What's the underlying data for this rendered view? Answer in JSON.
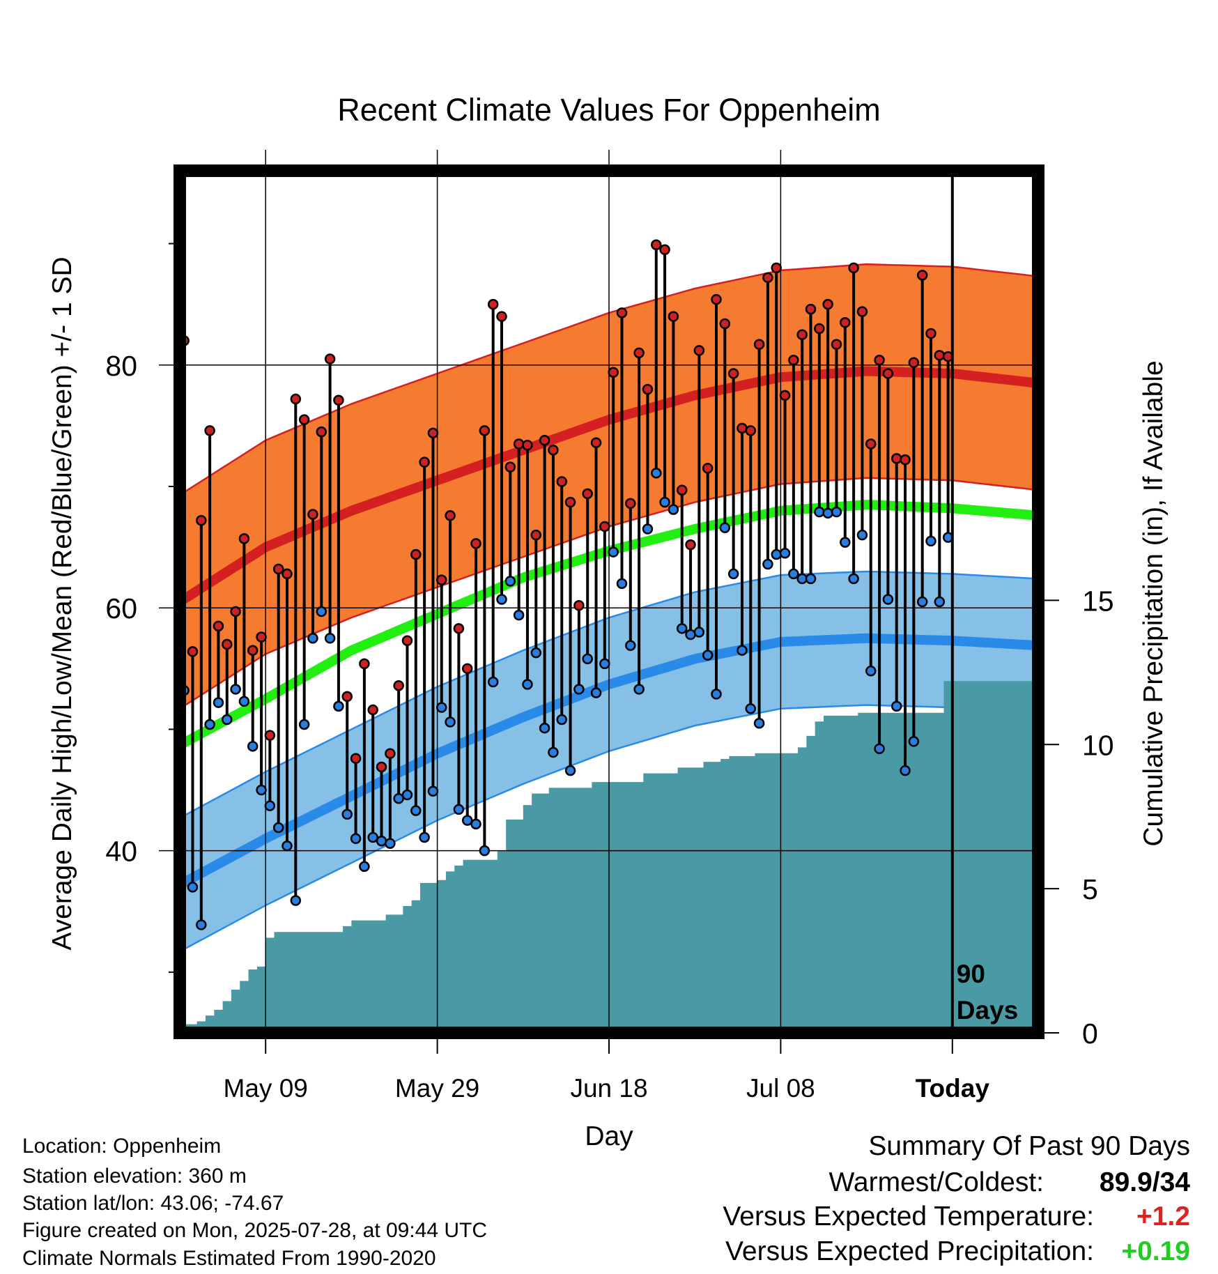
{
  "chart_data": {
    "type": "line",
    "title": "Recent Climate Values For Oppenheim",
    "xlabel": "Day",
    "ylabel": "Average Daily High/Low/Mean (Red/Blue/Green) +/- 1 SD",
    "ylabel_right": "Cumulative Precipitation (in), If Available",
    "x_ticks": [
      "May 09",
      "May 29",
      "Jun 18",
      "Jul 08",
      "Today"
    ],
    "x_tick_days": [
      10,
      30,
      50,
      70,
      90
    ],
    "xlim": [
      0,
      100
    ],
    "ylim": [
      25,
      96
    ],
    "y_ticks": [
      40,
      60,
      80
    ],
    "y_minor_ticks": [
      30,
      50,
      70,
      90
    ],
    "precip_ylim": [
      0,
      29.9
    ],
    "precip_ticks": [
      0,
      5,
      10,
      15
    ],
    "today_label": "90\nDays",
    "grid": true,
    "normals": {
      "high_mean": [
        [
          0,
          60.5
        ],
        [
          10,
          65.0
        ],
        [
          20,
          68.0
        ],
        [
          30,
          70.5
        ],
        [
          40,
          73.0
        ],
        [
          50,
          75.5
        ],
        [
          60,
          77.5
        ],
        [
          70,
          79.0
        ],
        [
          80,
          79.5
        ],
        [
          90,
          79.3
        ],
        [
          100,
          78.5
        ]
      ],
      "high_sd": 8.8,
      "mean": [
        [
          0,
          48.7
        ],
        [
          10,
          52.5
        ],
        [
          20,
          56.5
        ],
        [
          30,
          59.5
        ],
        [
          40,
          62.5
        ],
        [
          50,
          64.7
        ],
        [
          60,
          66.5
        ],
        [
          70,
          68.0
        ],
        [
          80,
          68.5
        ],
        [
          90,
          68.2
        ],
        [
          100,
          67.6
        ]
      ],
      "low_mean": [
        [
          0,
          37.2
        ],
        [
          10,
          41.0
        ],
        [
          20,
          44.5
        ],
        [
          30,
          48.0
        ],
        [
          40,
          51.0
        ],
        [
          50,
          53.7
        ],
        [
          60,
          55.8
        ],
        [
          70,
          57.2
        ],
        [
          80,
          57.5
        ],
        [
          90,
          57.3
        ],
        [
          100,
          56.9
        ]
      ],
      "low_sd": 5.5
    },
    "series": [
      {
        "name": "High",
        "color": "#cc2222",
        "values": [
          82,
          56.4,
          67.2,
          74.6,
          58.5,
          57.0,
          59.7,
          65.7,
          56.5,
          57.6,
          49.5,
          63.2,
          62.8,
          77.2,
          75.5,
          67.7,
          74.5,
          80.5,
          77.1,
          52.7,
          47.6,
          55.4,
          51.6,
          46.9,
          48.0,
          53.6,
          57.3,
          64.4,
          72.0,
          74.4,
          62.3,
          67.6,
          58.3,
          55.0,
          65.3,
          74.6,
          85.0,
          84.0,
          71.6,
          73.5,
          73.4,
          66.0,
          73.8,
          73.0,
          70.4,
          68.7,
          60.2,
          69.4,
          73.6,
          66.7,
          79.4,
          84.3,
          68.6,
          81.0,
          78.0,
          89.9,
          89.5,
          84.0,
          69.7,
          65.2,
          81.2,
          71.5,
          85.4,
          83.4,
          79.3,
          74.8,
          74.6,
          81.7,
          87.2,
          88.0,
          77.5,
          80.4,
          82.5,
          84.6,
          83.0,
          85.0,
          81.7,
          83.5,
          88.0,
          84.4,
          73.5,
          80.4,
          79.3,
          72.3,
          72.2,
          80.2,
          87.4,
          82.6,
          80.8,
          80.7
        ],
        "days": [
          0,
          1,
          2,
          3,
          4,
          5,
          6,
          7,
          8,
          9,
          10,
          11,
          12,
          13,
          14,
          15,
          16,
          17,
          18,
          19,
          20,
          21,
          22,
          23,
          24,
          25,
          26,
          27,
          28,
          29,
          30,
          31,
          32,
          33,
          34,
          35,
          36,
          37,
          38,
          39,
          40,
          41,
          42,
          43,
          44,
          45,
          46,
          47,
          48,
          49,
          50,
          51,
          52,
          53,
          54,
          55,
          56,
          57,
          58,
          59,
          60,
          61,
          62,
          63,
          64,
          65,
          66,
          67,
          68,
          69,
          70,
          71,
          72,
          73,
          74,
          75,
          76,
          77,
          78,
          79,
          80,
          81,
          82,
          83,
          84,
          85,
          86,
          87,
          88,
          89
        ]
      },
      {
        "name": "Low",
        "color": "#2a7ee0",
        "values": [
          53.2,
          37.0,
          33.9,
          50.4,
          52.2,
          50.8,
          53.3,
          52.3,
          48.6,
          45.0,
          43.7,
          41.9,
          40.4,
          35.9,
          50.4,
          57.5,
          59.7,
          57.5,
          51.9,
          43.0,
          41.0,
          38.7,
          41.1,
          40.8,
          40.6,
          44.3,
          44.6,
          43.3,
          41.1,
          44.9,
          51.8,
          50.6,
          43.4,
          42.5,
          42.2,
          40.0,
          53.9,
          60.7,
          62.2,
          59.4,
          53.7,
          56.3,
          50.1,
          48.1,
          50.8,
          46.6,
          53.3,
          55.8,
          53.0,
          55.4,
          64.6,
          62.0,
          56.9,
          53.3,
          66.5,
          71.1,
          68.7,
          68.1,
          58.3,
          57.8,
          58.0,
          56.1,
          52.9,
          66.6,
          62.8,
          56.5,
          51.7,
          50.5,
          63.6,
          64.4,
          64.5,
          62.8,
          62.4,
          62.4,
          67.9,
          67.8,
          67.9,
          65.4,
          62.4,
          66.0,
          54.8,
          48.4,
          60.7,
          51.9,
          46.6,
          49.0,
          60.5,
          65.5,
          60.5,
          65.8
        ],
        "days": [
          0,
          1,
          2,
          3,
          4,
          5,
          6,
          7,
          8,
          9,
          10,
          11,
          12,
          13,
          14,
          15,
          16,
          17,
          18,
          19,
          20,
          21,
          22,
          23,
          24,
          25,
          26,
          27,
          28,
          29,
          30,
          31,
          32,
          33,
          34,
          35,
          36,
          37,
          38,
          39,
          40,
          41,
          42,
          43,
          44,
          45,
          46,
          47,
          48,
          49,
          50,
          51,
          52,
          53,
          54,
          55,
          56,
          57,
          58,
          59,
          60,
          61,
          62,
          63,
          64,
          65,
          66,
          67,
          68,
          69,
          70,
          71,
          72,
          73,
          74,
          75,
          76,
          77,
          78,
          79,
          80,
          81,
          82,
          83,
          84,
          85,
          86,
          87,
          88,
          89
        ]
      },
      {
        "name": "Cumulative Precipitation",
        "color": "#4a9aa5",
        "points": [
          [
            0,
            0.3
          ],
          [
            2,
            0.4
          ],
          [
            3,
            0.6
          ],
          [
            4,
            0.8
          ],
          [
            5,
            1.1
          ],
          [
            6,
            1.5
          ],
          [
            7,
            1.8
          ],
          [
            8,
            2.2
          ],
          [
            9,
            2.3
          ],
          [
            10,
            3.3
          ],
          [
            11,
            3.5
          ],
          [
            18,
            3.5
          ],
          [
            19,
            3.7
          ],
          [
            20,
            3.9
          ],
          [
            22,
            3.9
          ],
          [
            24,
            4.1
          ],
          [
            26,
            4.4
          ],
          [
            27,
            4.6
          ],
          [
            28,
            5.2
          ],
          [
            30,
            5.3
          ],
          [
            31,
            5.6
          ],
          [
            32,
            5.8
          ],
          [
            33,
            6.0
          ],
          [
            36,
            6.0
          ],
          [
            37,
            6.3
          ],
          [
            38,
            7.4
          ],
          [
            40,
            7.9
          ],
          [
            41,
            8.3
          ],
          [
            43,
            8.5
          ],
          [
            46,
            8.5
          ],
          [
            48,
            8.7
          ],
          [
            53,
            8.7
          ],
          [
            54,
            9.0
          ],
          [
            57,
            9.0
          ],
          [
            58,
            9.2
          ],
          [
            60,
            9.2
          ],
          [
            61,
            9.4
          ],
          [
            62,
            9.4
          ],
          [
            63,
            9.5
          ],
          [
            64,
            9.6
          ],
          [
            65,
            9.6
          ],
          [
            66,
            9.6
          ],
          [
            67,
            9.7
          ],
          [
            71,
            9.7
          ],
          [
            72,
            9.9
          ],
          [
            73,
            10.3
          ],
          [
            74,
            10.8
          ],
          [
            75,
            11.0
          ],
          [
            79,
            11.1
          ],
          [
            88,
            11.1
          ],
          [
            89,
            12.2
          ],
          [
            100,
            12.2
          ]
        ]
      }
    ]
  },
  "footer": {
    "location": "Location: Oppenheim",
    "elevation": "Station elevation: 360 m",
    "latlon": "Station lat/lon: 43.06; -74.67",
    "created": "Figure created on Mon, 2025-07-28, at 09:44 UTC",
    "normals": "Climate Normals Estimated From 1990-2020"
  },
  "summary": {
    "title": "Summary Of Past 90 Days",
    "warmest_label": "Warmest/Coldest:",
    "warmest_value": "89.9/34",
    "temp_label": "Versus Expected Temperature:",
    "temp_value": "+1.2",
    "temp_color": "#dd2222",
    "precip_label": "Versus Expected Precipitation:",
    "precip_value": "+0.19",
    "precip_color": "#22cc22"
  }
}
